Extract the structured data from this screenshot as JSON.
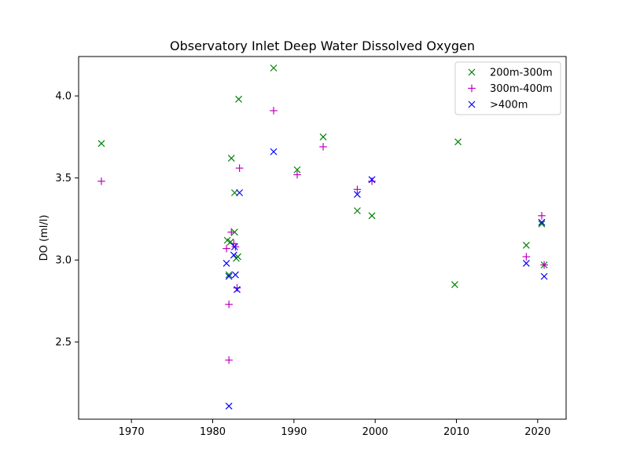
{
  "chart_data": {
    "type": "scatter",
    "title": "Observatory Inlet Deep Water Dissolved Oxygen",
    "xlabel": "",
    "ylabel": "DO (ml/l)",
    "xlim": [
      1963.5,
      2023.5
    ],
    "ylim": [
      2.03,
      4.24
    ],
    "xticks": [
      1970,
      1980,
      1990,
      2000,
      2010,
      2020
    ],
    "yticks": [
      2.5,
      3.0,
      3.5,
      4.0
    ],
    "ytick_labels": [
      "2.5",
      "3.0",
      "3.5",
      "4.0"
    ],
    "grid": false,
    "legend_position": "top-right",
    "series": [
      {
        "name": "200m-300m",
        "marker": "x",
        "color": "#008000",
        "points": [
          [
            1966.3,
            3.71
          ],
          [
            1981.8,
            3.12
          ],
          [
            1982.0,
            2.91
          ],
          [
            1982.2,
            3.11
          ],
          [
            1982.3,
            3.62
          ],
          [
            1982.7,
            3.41
          ],
          [
            1982.7,
            3.17
          ],
          [
            1982.9,
            3.01
          ],
          [
            1983.1,
            3.02
          ],
          [
            1983.2,
            3.98
          ],
          [
            1987.5,
            4.17
          ],
          [
            1990.4,
            3.55
          ],
          [
            1993.6,
            3.75
          ],
          [
            1997.8,
            3.3
          ],
          [
            1999.6,
            3.27
          ],
          [
            2009.8,
            2.85
          ],
          [
            2010.2,
            3.72
          ],
          [
            2018.6,
            3.09
          ],
          [
            2020.5,
            3.22
          ],
          [
            2020.8,
            2.97
          ]
        ]
      },
      {
        "name": "300m-400m",
        "marker": "+",
        "color": "#bf00bf",
        "points": [
          [
            1966.3,
            3.48
          ],
          [
            1981.7,
            3.07
          ],
          [
            1982.0,
            2.73
          ],
          [
            1982.0,
            2.39
          ],
          [
            1982.3,
            3.17
          ],
          [
            1982.6,
            3.1
          ],
          [
            1982.8,
            3.08
          ],
          [
            1983.0,
            2.83
          ],
          [
            1983.3,
            3.56
          ],
          [
            1987.5,
            3.91
          ],
          [
            1990.4,
            3.52
          ],
          [
            1993.6,
            3.69
          ],
          [
            1997.8,
            3.43
          ],
          [
            1999.6,
            3.48
          ],
          [
            2018.6,
            3.02
          ],
          [
            2020.5,
            3.27
          ],
          [
            2020.8,
            2.97
          ]
        ]
      },
      {
        "name": ">400m",
        "marker": "x",
        "color": "#0000ff",
        "points": [
          [
            1981.7,
            2.98
          ],
          [
            1982.0,
            2.9
          ],
          [
            1982.0,
            2.11
          ],
          [
            1982.6,
            3.03
          ],
          [
            1982.7,
            3.08
          ],
          [
            1982.8,
            2.91
          ],
          [
            1983.0,
            2.82
          ],
          [
            1983.3,
            3.41
          ],
          [
            1987.5,
            3.66
          ],
          [
            1997.8,
            3.4
          ],
          [
            1999.6,
            3.49
          ],
          [
            2018.6,
            2.98
          ],
          [
            2020.5,
            3.23
          ],
          [
            2020.8,
            2.9
          ]
        ]
      }
    ]
  }
}
